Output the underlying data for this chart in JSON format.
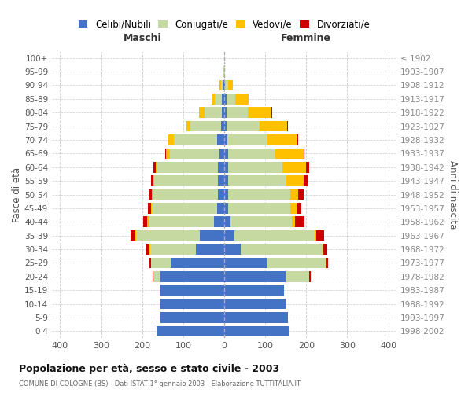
{
  "age_groups": [
    "0-4",
    "5-9",
    "10-14",
    "15-19",
    "20-24",
    "25-29",
    "30-34",
    "35-39",
    "40-44",
    "45-49",
    "50-54",
    "55-59",
    "60-64",
    "65-69",
    "70-74",
    "75-79",
    "80-84",
    "85-89",
    "90-94",
    "95-99",
    "100+"
  ],
  "birth_years": [
    "1998-2002",
    "1993-1997",
    "1988-1992",
    "1983-1987",
    "1978-1982",
    "1973-1977",
    "1968-1972",
    "1963-1967",
    "1958-1962",
    "1953-1957",
    "1948-1952",
    "1943-1947",
    "1938-1942",
    "1933-1937",
    "1928-1932",
    "1923-1927",
    "1918-1922",
    "1913-1917",
    "1908-1912",
    "1903-1907",
    "≤ 1902"
  ],
  "males": {
    "celibi": [
      165,
      155,
      155,
      155,
      155,
      130,
      70,
      60,
      25,
      18,
      15,
      15,
      15,
      12,
      18,
      8,
      5,
      5,
      2,
      0,
      0
    ],
    "coniugati": [
      0,
      0,
      0,
      0,
      18,
      48,
      110,
      155,
      160,
      158,
      160,
      155,
      148,
      120,
      105,
      75,
      42,
      18,
      5,
      1,
      0
    ],
    "vedovi": [
      0,
      0,
      0,
      0,
      0,
      0,
      2,
      2,
      2,
      2,
      2,
      3,
      4,
      10,
      14,
      10,
      14,
      8,
      4,
      0,
      0
    ],
    "divorziati": [
      0,
      0,
      0,
      0,
      2,
      5,
      8,
      12,
      10,
      8,
      8,
      5,
      5,
      2,
      0,
      0,
      0,
      0,
      0,
      0,
      0
    ]
  },
  "females": {
    "nubili": [
      160,
      155,
      150,
      145,
      150,
      105,
      40,
      25,
      15,
      10,
      10,
      10,
      10,
      10,
      8,
      6,
      5,
      5,
      2,
      0,
      0
    ],
    "coniugate": [
      0,
      0,
      0,
      0,
      58,
      142,
      200,
      195,
      150,
      152,
      152,
      142,
      132,
      115,
      98,
      80,
      52,
      22,
      8,
      1,
      0
    ],
    "vedove": [
      0,
      0,
      0,
      0,
      0,
      2,
      2,
      4,
      7,
      14,
      18,
      42,
      58,
      68,
      72,
      68,
      58,
      32,
      12,
      1,
      0
    ],
    "divorziate": [
      0,
      0,
      0,
      0,
      2,
      5,
      10,
      20,
      24,
      12,
      14,
      10,
      8,
      2,
      2,
      2,
      2,
      0,
      0,
      0,
      0
    ]
  },
  "colors": {
    "celibi": "#4472c4",
    "coniugati": "#c5d9a0",
    "vedovi": "#ffc000",
    "divorziati": "#cc0000"
  },
  "title_main": "Popolazione per età, sesso e stato civile - 2003",
  "title_sub": "COMUNE DI COLOGNE (BS) - Dati ISTAT 1° gennaio 2003 - Elaborazione TUTTITALIA.IT",
  "xlabel_left": "Maschi",
  "xlabel_right": "Femmine",
  "ylabel_left": "Fasce di età",
  "ylabel_right": "Anni di nascita",
  "legend_labels": [
    "Celibi/Nubili",
    "Coniugati/e",
    "Vedovi/e",
    "Divorziati/e"
  ],
  "xlim": 420,
  "background_color": "#ffffff",
  "grid_color": "#cccccc"
}
